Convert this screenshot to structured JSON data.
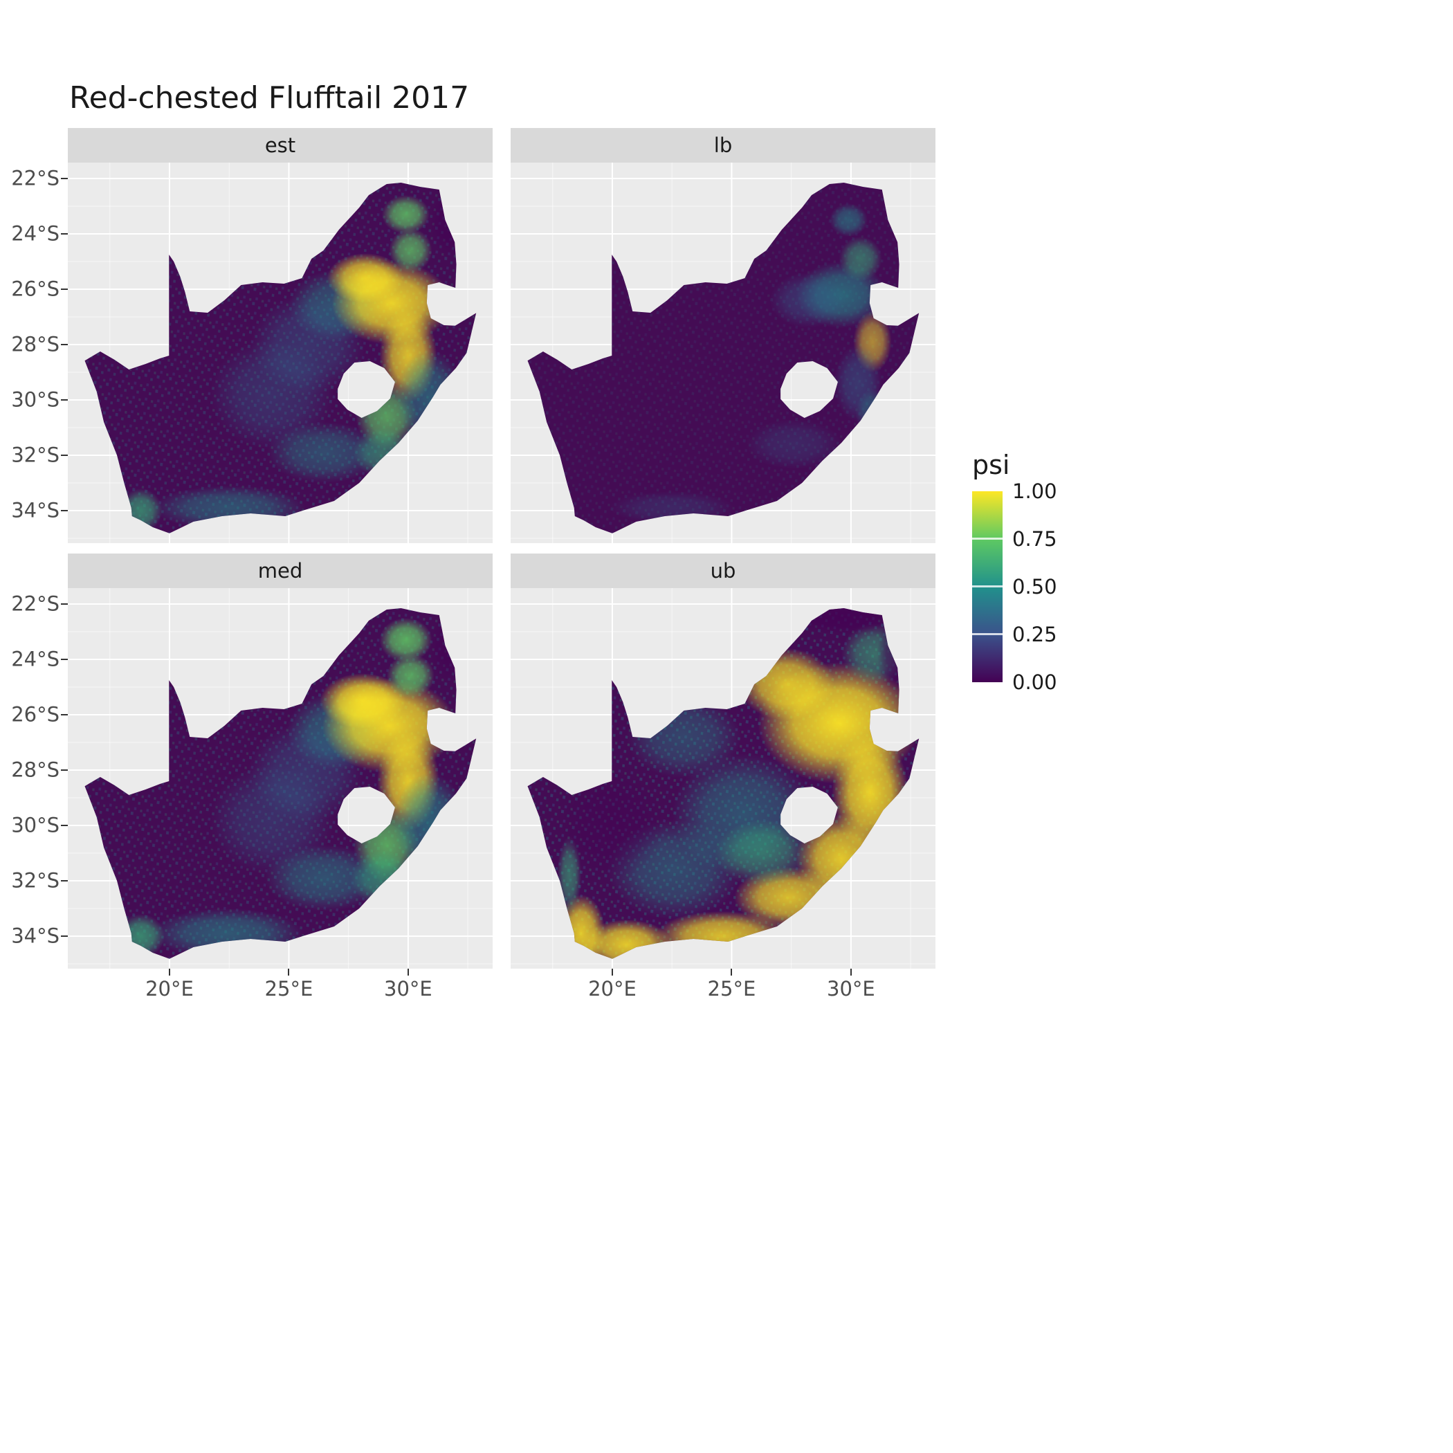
{
  "title": "Red-chested Flufftail 2017",
  "chart_data": {
    "type": "heatmap",
    "subtype": "faceted raster occupancy maps of South Africa (ggplot-style, viridis colour scale)",
    "region": "South Africa (Lesotho shown as interior hole, Eswatini as eastern notch)",
    "facets": [
      "est",
      "lb",
      "med",
      "ub"
    ],
    "x_axis": {
      "label": "",
      "ticks": [
        "20°E",
        "25°E",
        "30°E"
      ],
      "tick_values": [
        20,
        25,
        30
      ],
      "range_lon": [
        15.74,
        33.54
      ]
    },
    "y_axis": {
      "label": "",
      "ticks": [
        "22°S",
        "24°S",
        "26°S",
        "28°S",
        "30°S",
        "32°S",
        "34°S"
      ],
      "tick_values": [
        -22,
        -24,
        -26,
        -28,
        -30,
        -32,
        -34
      ],
      "range_lat": [
        -35.18,
        -21.43
      ]
    },
    "legend": {
      "title": "psi",
      "labels": [
        "1.00",
        "0.75",
        "0.50",
        "0.25",
        "0.00"
      ],
      "values": [
        1.0,
        0.75,
        0.5,
        0.25,
        0.0
      ],
      "colormap": "viridis",
      "colors": {
        "0.0": "#440154",
        "0.25": "#3b528b",
        "0.5": "#21918c",
        "0.75": "#5ec962",
        "1.0": "#fde725"
      },
      "position": "right"
    },
    "grid": "white major gridlines on grey panel",
    "description": "Occupancy probability (psi) for Red-chested Flufftail in 2017. Four facets: est (estimate) and med (median) show high psi (yellow) along the eastern highveld and Drakensberg escarpment with teal scatter over the east and south coast; lb (lower bound) is near zero almost everywhere with faint teal in the northeast; ub (upper bound) shows broad high psi across the northeast and all along the eastern and southern coastal belt, including the southwestern Cape."
  },
  "style": {
    "panel_bg": "#EBEBEB",
    "strip_bg": "#D9D9D9",
    "gridline": "#FFFFFF",
    "axis_text": "#4D4D4D",
    "tick_color": "#333333",
    "title_color": "#1A1A1A",
    "map_base": "#440C54"
  }
}
